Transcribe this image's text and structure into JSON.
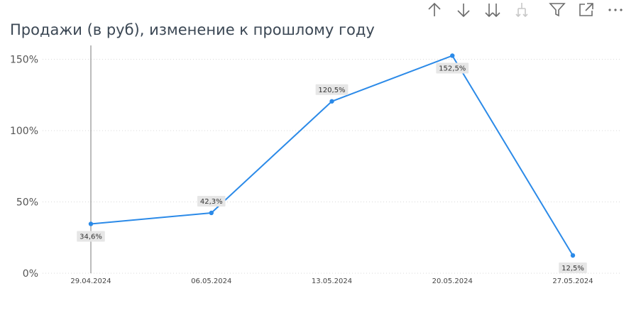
{
  "title": "Продажи (в руб), изменение к прошлому году",
  "toolbar": {
    "items": [
      {
        "name": "drill-up-icon",
        "enabled": true
      },
      {
        "name": "drill-down-icon",
        "enabled": true
      },
      {
        "name": "expand-all-down-icon",
        "enabled": true
      },
      {
        "name": "expand-hierarchy-icon",
        "enabled": false
      },
      {
        "name": "filter-icon",
        "enabled": true
      },
      {
        "name": "focus-mode-icon",
        "enabled": true
      },
      {
        "name": "more-options-icon",
        "enabled": true
      }
    ]
  },
  "chart_data": {
    "type": "line",
    "title": "Продажи (в руб), изменение к прошлому году",
    "categories": [
      "29.04.2024",
      "06.05.2024",
      "13.05.2024",
      "20.05.2024",
      "27.05.2024"
    ],
    "values": [
      34.6,
      42.3,
      120.5,
      152.5,
      12.5
    ],
    "data_labels": [
      "34,6%",
      "42,3%",
      "120,5%",
      "152,5%",
      "12,5%"
    ],
    "y_ticks": [
      0,
      50,
      100,
      150
    ],
    "y_tick_labels": [
      "0%",
      "50%",
      "100%",
      "150%"
    ],
    "ylim": [
      0,
      160
    ],
    "grid": true,
    "line_color": "#2b8ae8",
    "label_bg_color": "#e6e6e6",
    "reference_line_category": "29.04.2024"
  }
}
